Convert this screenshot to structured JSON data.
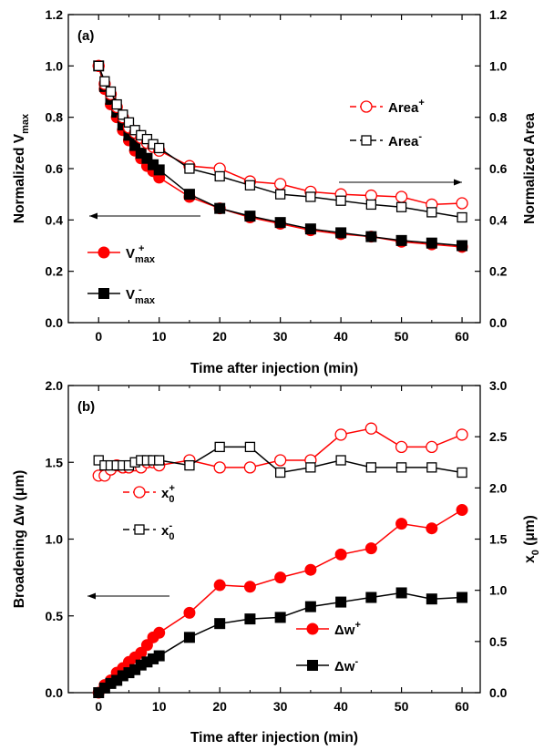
{
  "chart_data": [
    {
      "type": "line",
      "panel_label": "(a)",
      "xlabel": "Time after injection (min)",
      "ylabel_left": "Normalized V",
      "ylabel_left_sub": "max",
      "ylabel_right": "Normalized Area",
      "xlim": [
        -5,
        63
      ],
      "ylim_left": [
        0.0,
        1.2
      ],
      "ylim_right": [
        0.0,
        1.2
      ],
      "xticks": [
        0,
        10,
        20,
        30,
        40,
        50,
        60
      ],
      "yticks_left": [
        "0.0",
        "0.2",
        "0.4",
        "0.6",
        "0.8",
        "1.0",
        "1.2"
      ],
      "yticks_right": [
        "0.0",
        "0.2",
        "0.4",
        "0.6",
        "0.8",
        "1.0",
        "1.2"
      ],
      "colors": {
        "red": "#ff0000",
        "black": "#000000"
      },
      "series": [
        {
          "key": "vmax_plus",
          "label_base": "V",
          "label_sub": "max",
          "label_sup": "+",
          "color": "#ff0000",
          "marker": "filled-circle",
          "axis": "left",
          "x": [
            0,
            1,
            2,
            3,
            4,
            5,
            6,
            7,
            8,
            9,
            10,
            15,
            20,
            25,
            30,
            35,
            40,
            45,
            50,
            55,
            60
          ],
          "y": [
            1.0,
            0.91,
            0.85,
            0.8,
            0.75,
            0.71,
            0.67,
            0.64,
            0.61,
            0.59,
            0.565,
            0.49,
            0.445,
            0.41,
            0.385,
            0.36,
            0.345,
            0.335,
            0.315,
            0.305,
            0.295
          ]
        },
        {
          "key": "vmax_minus",
          "label_base": "V",
          "label_sub": "max",
          "label_sup": "-",
          "color": "#000000",
          "marker": "filled-square",
          "axis": "left",
          "x": [
            0,
            1,
            2,
            3,
            4,
            5,
            6,
            7,
            8,
            9,
            10,
            15,
            20,
            25,
            30,
            35,
            40,
            45,
            50,
            55,
            60
          ],
          "y": [
            1.0,
            0.92,
            0.87,
            0.82,
            0.77,
            0.73,
            0.69,
            0.66,
            0.64,
            0.615,
            0.595,
            0.5,
            0.445,
            0.415,
            0.39,
            0.365,
            0.35,
            0.335,
            0.32,
            0.31,
            0.3
          ]
        },
        {
          "key": "area_plus",
          "label_base": "Area",
          "label_sup": "+",
          "color": "#ff0000",
          "marker": "open-circle",
          "axis": "right",
          "x": [
            0,
            1,
            2,
            3,
            4,
            5,
            6,
            7,
            8,
            9,
            10,
            15,
            20,
            25,
            30,
            35,
            40,
            45,
            50,
            55,
            60
          ],
          "y": [
            1.0,
            0.93,
            0.89,
            0.84,
            0.8,
            0.76,
            0.74,
            0.72,
            0.7,
            0.685,
            0.67,
            0.61,
            0.6,
            0.55,
            0.54,
            0.51,
            0.5,
            0.495,
            0.49,
            0.46,
            0.465
          ]
        },
        {
          "key": "area_minus",
          "label_base": "Area",
          "label_sup": "-",
          "color": "#000000",
          "marker": "open-square",
          "axis": "right",
          "x": [
            0,
            1,
            2,
            3,
            4,
            5,
            6,
            7,
            8,
            9,
            10,
            15,
            20,
            25,
            30,
            35,
            40,
            45,
            50,
            55,
            60
          ],
          "y": [
            1.0,
            0.94,
            0.9,
            0.85,
            0.81,
            0.78,
            0.75,
            0.73,
            0.715,
            0.695,
            0.68,
            0.6,
            0.57,
            0.535,
            0.5,
            0.49,
            0.475,
            0.46,
            0.45,
            0.43,
            0.41
          ]
        }
      ],
      "legend": [
        "vmax_plus",
        "vmax_minus",
        "area_plus",
        "area_minus"
      ]
    },
    {
      "type": "line",
      "panel_label": "(b)",
      "xlabel": "Time after injection (min)",
      "ylabel_left": "Broadening Δw (μm)",
      "ylabel_right": "x",
      "ylabel_right_sub": "0",
      "ylabel_right_tail": " (μm)",
      "xlim": [
        -5,
        63
      ],
      "ylim_left": [
        0.0,
        2.0
      ],
      "ylim_right": [
        0.0,
        3.0
      ],
      "xticks": [
        0,
        10,
        20,
        30,
        40,
        50,
        60
      ],
      "yticks_left": [
        "0.0",
        "0.5",
        "1.0",
        "1.5",
        "2.0"
      ],
      "yticks_right": [
        "0.0",
        "0.5",
        "1.0",
        "1.5",
        "2.0",
        "2.5",
        "3.0"
      ],
      "series": [
        {
          "key": "x0_plus",
          "label_base": "x",
          "label_sub": "0",
          "label_sup": "+",
          "color": "#ff0000",
          "marker": "open-circle",
          "axis": "right",
          "x": [
            0,
            1,
            2,
            3,
            4,
            5,
            6,
            7,
            8,
            9,
            10,
            15,
            20,
            25,
            30,
            35,
            40,
            45,
            50,
            55,
            60
          ],
          "y": [
            2.12,
            2.12,
            2.18,
            2.22,
            2.2,
            2.2,
            2.22,
            2.2,
            2.25,
            2.25,
            2.22,
            2.27,
            2.2,
            2.2,
            2.27,
            2.27,
            2.52,
            2.58,
            2.4,
            2.4,
            2.52
          ]
        },
        {
          "key": "x0_minus",
          "label_base": "x",
          "label_sub": "0",
          "label_sup": "-",
          "color": "#000000",
          "marker": "open-square",
          "axis": "right",
          "x": [
            0,
            1,
            2,
            3,
            4,
            5,
            6,
            7,
            8,
            9,
            10,
            15,
            20,
            25,
            30,
            35,
            40,
            45,
            50,
            55,
            60
          ],
          "y": [
            2.27,
            2.22,
            2.22,
            2.22,
            2.22,
            2.22,
            2.25,
            2.27,
            2.27,
            2.27,
            2.27,
            2.22,
            2.4,
            2.4,
            2.15,
            2.2,
            2.27,
            2.2,
            2.2,
            2.2,
            2.15
          ]
        },
        {
          "key": "dw_plus",
          "label_base": "Δw",
          "label_sup": "+",
          "color": "#ff0000",
          "marker": "filled-circle",
          "axis": "left",
          "x": [
            0,
            1,
            2,
            3,
            4,
            5,
            6,
            7,
            8,
            9,
            10,
            15,
            20,
            25,
            30,
            35,
            40,
            45,
            50,
            55,
            60
          ],
          "y": [
            0.0,
            0.05,
            0.08,
            0.13,
            0.16,
            0.2,
            0.23,
            0.26,
            0.31,
            0.36,
            0.39,
            0.52,
            0.7,
            0.69,
            0.75,
            0.8,
            0.9,
            0.94,
            1.1,
            1.07,
            1.19
          ]
        },
        {
          "key": "dw_minus",
          "label_base": "Δw",
          "label_sup": "-",
          "color": "#000000",
          "marker": "filled-square",
          "axis": "left",
          "x": [
            0,
            1,
            2,
            3,
            4,
            5,
            6,
            7,
            8,
            9,
            10,
            15,
            20,
            25,
            30,
            35,
            40,
            45,
            50,
            55,
            60
          ],
          "y": [
            0.0,
            0.03,
            0.06,
            0.08,
            0.11,
            0.13,
            0.15,
            0.18,
            0.2,
            0.22,
            0.24,
            0.36,
            0.45,
            0.48,
            0.49,
            0.56,
            0.59,
            0.62,
            0.65,
            0.61,
            0.62
          ]
        }
      ],
      "legend": [
        "x0_plus",
        "x0_minus",
        "dw_plus",
        "dw_minus"
      ]
    }
  ]
}
